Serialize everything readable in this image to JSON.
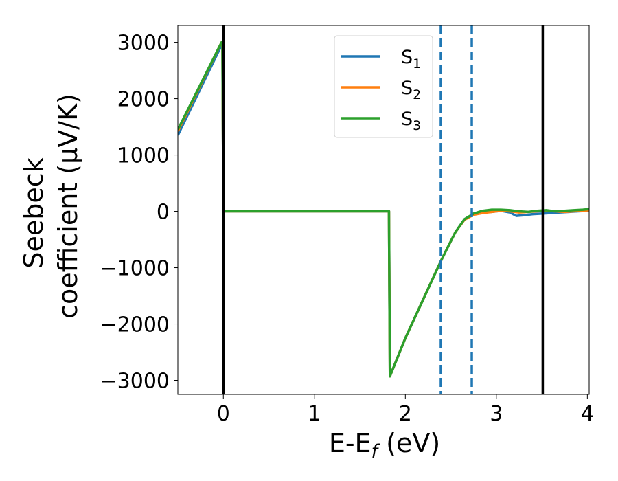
{
  "chart_data": {
    "type": "line",
    "xlabel": "E-E",
    "xlabel_sub": "f",
    "xlabel_unit": " (eV)",
    "ylabel_line1": "Seebeck",
    "ylabel_line2": "coefficient  (μV/K)",
    "xlim": [
      -0.5,
      4.02
    ],
    "ylim": [
      -3250,
      3300
    ],
    "x_ticks": [
      0,
      1,
      2,
      3,
      4
    ],
    "x_tick_labels": [
      "0",
      "1",
      "2",
      "3",
      "4"
    ],
    "y_ticks": [
      -3000,
      -2000,
      -1000,
      0,
      1000,
      2000,
      3000
    ],
    "y_tick_labels": [
      "−3000",
      "−2000",
      "−1000",
      "0",
      "1000",
      "2000",
      "3000"
    ],
    "legend_position": "upper center",
    "series": [
      {
        "name": "S",
        "sub": "1",
        "color": "#1f77b4",
        "x": [
          -0.5,
          -0.02,
          -0.01,
          0.0,
          1.82,
          1.83,
          2.0,
          2.2,
          2.4,
          2.55,
          2.65,
          2.75,
          2.85,
          2.95,
          3.05,
          3.15,
          3.22,
          3.3,
          3.4,
          3.5,
          3.6,
          3.7,
          3.8,
          3.9,
          4.02
        ],
        "y": [
          1350,
          2950,
          2950,
          0,
          0,
          -2930,
          -2250,
          -1550,
          -850,
          -370,
          -140,
          -50,
          -20,
          -10,
          10,
          -20,
          -80,
          -70,
          -50,
          -40,
          -30,
          -20,
          -10,
          0,
          10
        ]
      },
      {
        "name": "S",
        "sub": "2",
        "color": "#ff7f0e",
        "x": [
          -0.5,
          -0.02,
          -0.01,
          0.0,
          1.82,
          1.83,
          2.0,
          2.2,
          2.4,
          2.55,
          2.65,
          2.75,
          2.85,
          2.95,
          3.05,
          3.15,
          3.25,
          3.35,
          3.45,
          3.55,
          3.65,
          3.75,
          3.85,
          3.95,
          4.02
        ],
        "y": [
          1420,
          3000,
          3000,
          0,
          0,
          -2930,
          -2250,
          -1550,
          -850,
          -370,
          -150,
          -60,
          -30,
          -10,
          10,
          0,
          -20,
          -10,
          0,
          10,
          0,
          -10,
          0,
          10,
          20
        ]
      },
      {
        "name": "S",
        "sub": "3",
        "color": "#2ca02c",
        "x": [
          -0.5,
          -0.02,
          -0.01,
          0.0,
          1.82,
          1.83,
          2.0,
          2.2,
          2.4,
          2.55,
          2.65,
          2.75,
          2.85,
          2.95,
          3.05,
          3.15,
          3.25,
          3.35,
          3.45,
          3.55,
          3.65,
          3.75,
          3.85,
          3.95,
          4.02
        ],
        "y": [
          1450,
          3000,
          3000,
          0,
          0,
          -2930,
          -2250,
          -1550,
          -850,
          -370,
          -140,
          -40,
          10,
          30,
          30,
          20,
          0,
          -10,
          10,
          20,
          0,
          10,
          20,
          30,
          40
        ]
      }
    ],
    "vlines_solid": [
      0.0,
      3.51
    ],
    "vlines_dashed": [
      2.39,
      2.73
    ],
    "vline_solid_color": "#000000",
    "vline_dashed_color": "#1f77b4"
  }
}
